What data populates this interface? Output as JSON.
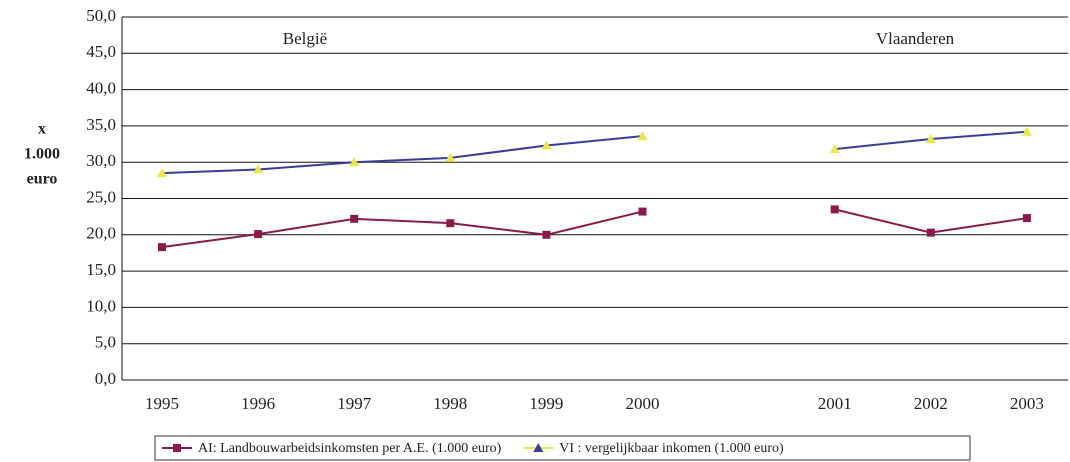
{
  "chart_data": {
    "type": "line",
    "ylabel": [
      "x",
      "1.000",
      "euro"
    ],
    "annotations": [
      "België",
      "Vlaanderen"
    ],
    "categories": [
      "1995",
      "1996",
      "1997",
      "1998",
      "1999",
      "2000",
      null,
      "2001",
      "2002",
      "2003"
    ],
    "series": [
      {
        "name": "AI: Landbouwarbeidsinkomsten per A.E. (1.000 euro)",
        "color": "#8b1a4a",
        "marker_color": "#8b1a4a",
        "marker": "square",
        "values": [
          18.3,
          20.1,
          22.2,
          21.6,
          20.0,
          23.2,
          null,
          23.5,
          20.3,
          22.3
        ]
      },
      {
        "name": "VI : vergelijkbaar inkomen (1.000 euro)",
        "color": "#3b3b9c",
        "marker_color": "#e8e84a",
        "marker": "triangle",
        "values": [
          28.5,
          29.0,
          30.0,
          30.6,
          32.3,
          33.6,
          null,
          31.8,
          33.2,
          34.2
        ]
      }
    ],
    "ylim": [
      0,
      50
    ],
    "yticks": [
      {
        "value": 0,
        "label": "0,0"
      },
      {
        "value": 5,
        "label": "5,0"
      },
      {
        "value": 10,
        "label": "10,0"
      },
      {
        "value": 15,
        "label": "15,0"
      },
      {
        "value": 20,
        "label": "20,0"
      },
      {
        "value": 25,
        "label": "25,0"
      },
      {
        "value": 30,
        "label": "30,0"
      },
      {
        "value": 35,
        "label": "35,0"
      },
      {
        "value": 40,
        "label": "40,0"
      },
      {
        "value": 45,
        "label": "45,0"
      },
      {
        "value": 50,
        "label": "50,0"
      }
    ],
    "grid": true
  }
}
